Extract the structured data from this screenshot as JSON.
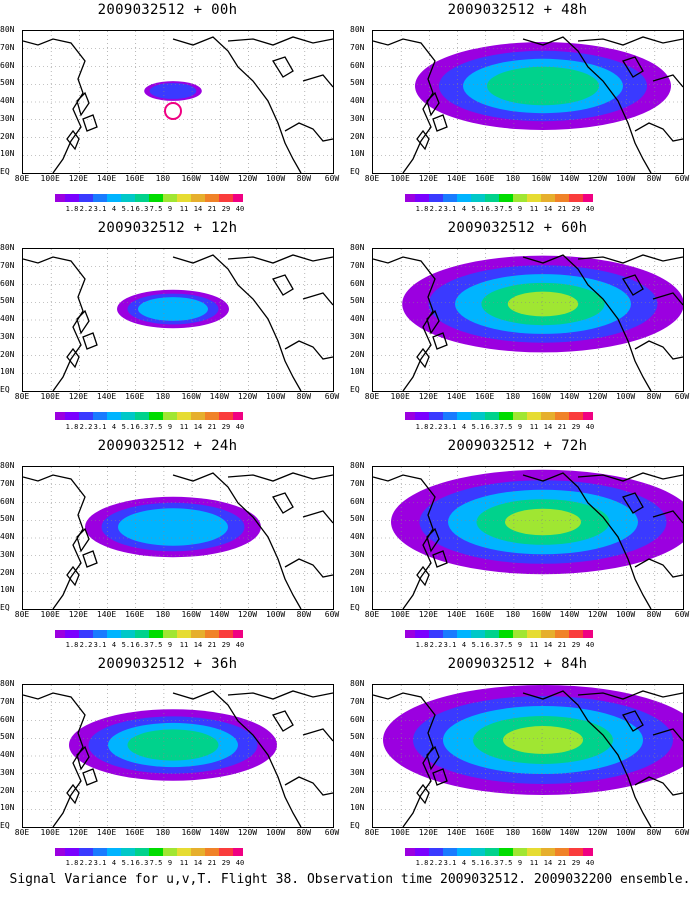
{
  "panels": [
    {
      "id": "p00",
      "title": "2009032512 + 00h",
      "level": 0
    },
    {
      "id": "p48",
      "title": "2009032512 + 48h",
      "level": 4
    },
    {
      "id": "p12",
      "title": "2009032512 + 12h",
      "level": 1
    },
    {
      "id": "p60",
      "title": "2009032512 + 60h",
      "level": 5
    },
    {
      "id": "p24",
      "title": "2009032512 + 24h",
      "level": 2
    },
    {
      "id": "p72",
      "title": "2009032512 + 72h",
      "level": 6
    },
    {
      "id": "p36",
      "title": "2009032512 + 36h",
      "level": 3
    },
    {
      "id": "p84",
      "title": "2009032512 + 84h",
      "level": 7
    }
  ],
  "lat_labels": [
    "80N",
    "70N",
    "60N",
    "50N",
    "40N",
    "30N",
    "20N",
    "10N",
    "EQ"
  ],
  "lon_labels": [
    "80E",
    "100E",
    "120E",
    "140E",
    "160E",
    "180",
    "160W",
    "140W",
    "120W",
    "100W",
    "80W",
    "60W"
  ],
  "colorbar": {
    "labels": [
      "1.8",
      "2.2",
      "3.1",
      "4",
      "5.1",
      "6.3",
      "7.5",
      "9",
      "11",
      "14",
      "21",
      "29",
      "40"
    ],
    "colors": [
      "#9b00e0",
      "#7a00ff",
      "#3a3aff",
      "#1a7bff",
      "#00b4ff",
      "#00c8c8",
      "#00d28c",
      "#00dc00",
      "#a0e632",
      "#e6dc32",
      "#e6af2d",
      "#f08228",
      "#fa3c3c",
      "#f00082"
    ]
  },
  "footer": "Signal Variance for u,v,T. Flight 38. Observation time 2009032512. 2009032200 ensemble."
}
